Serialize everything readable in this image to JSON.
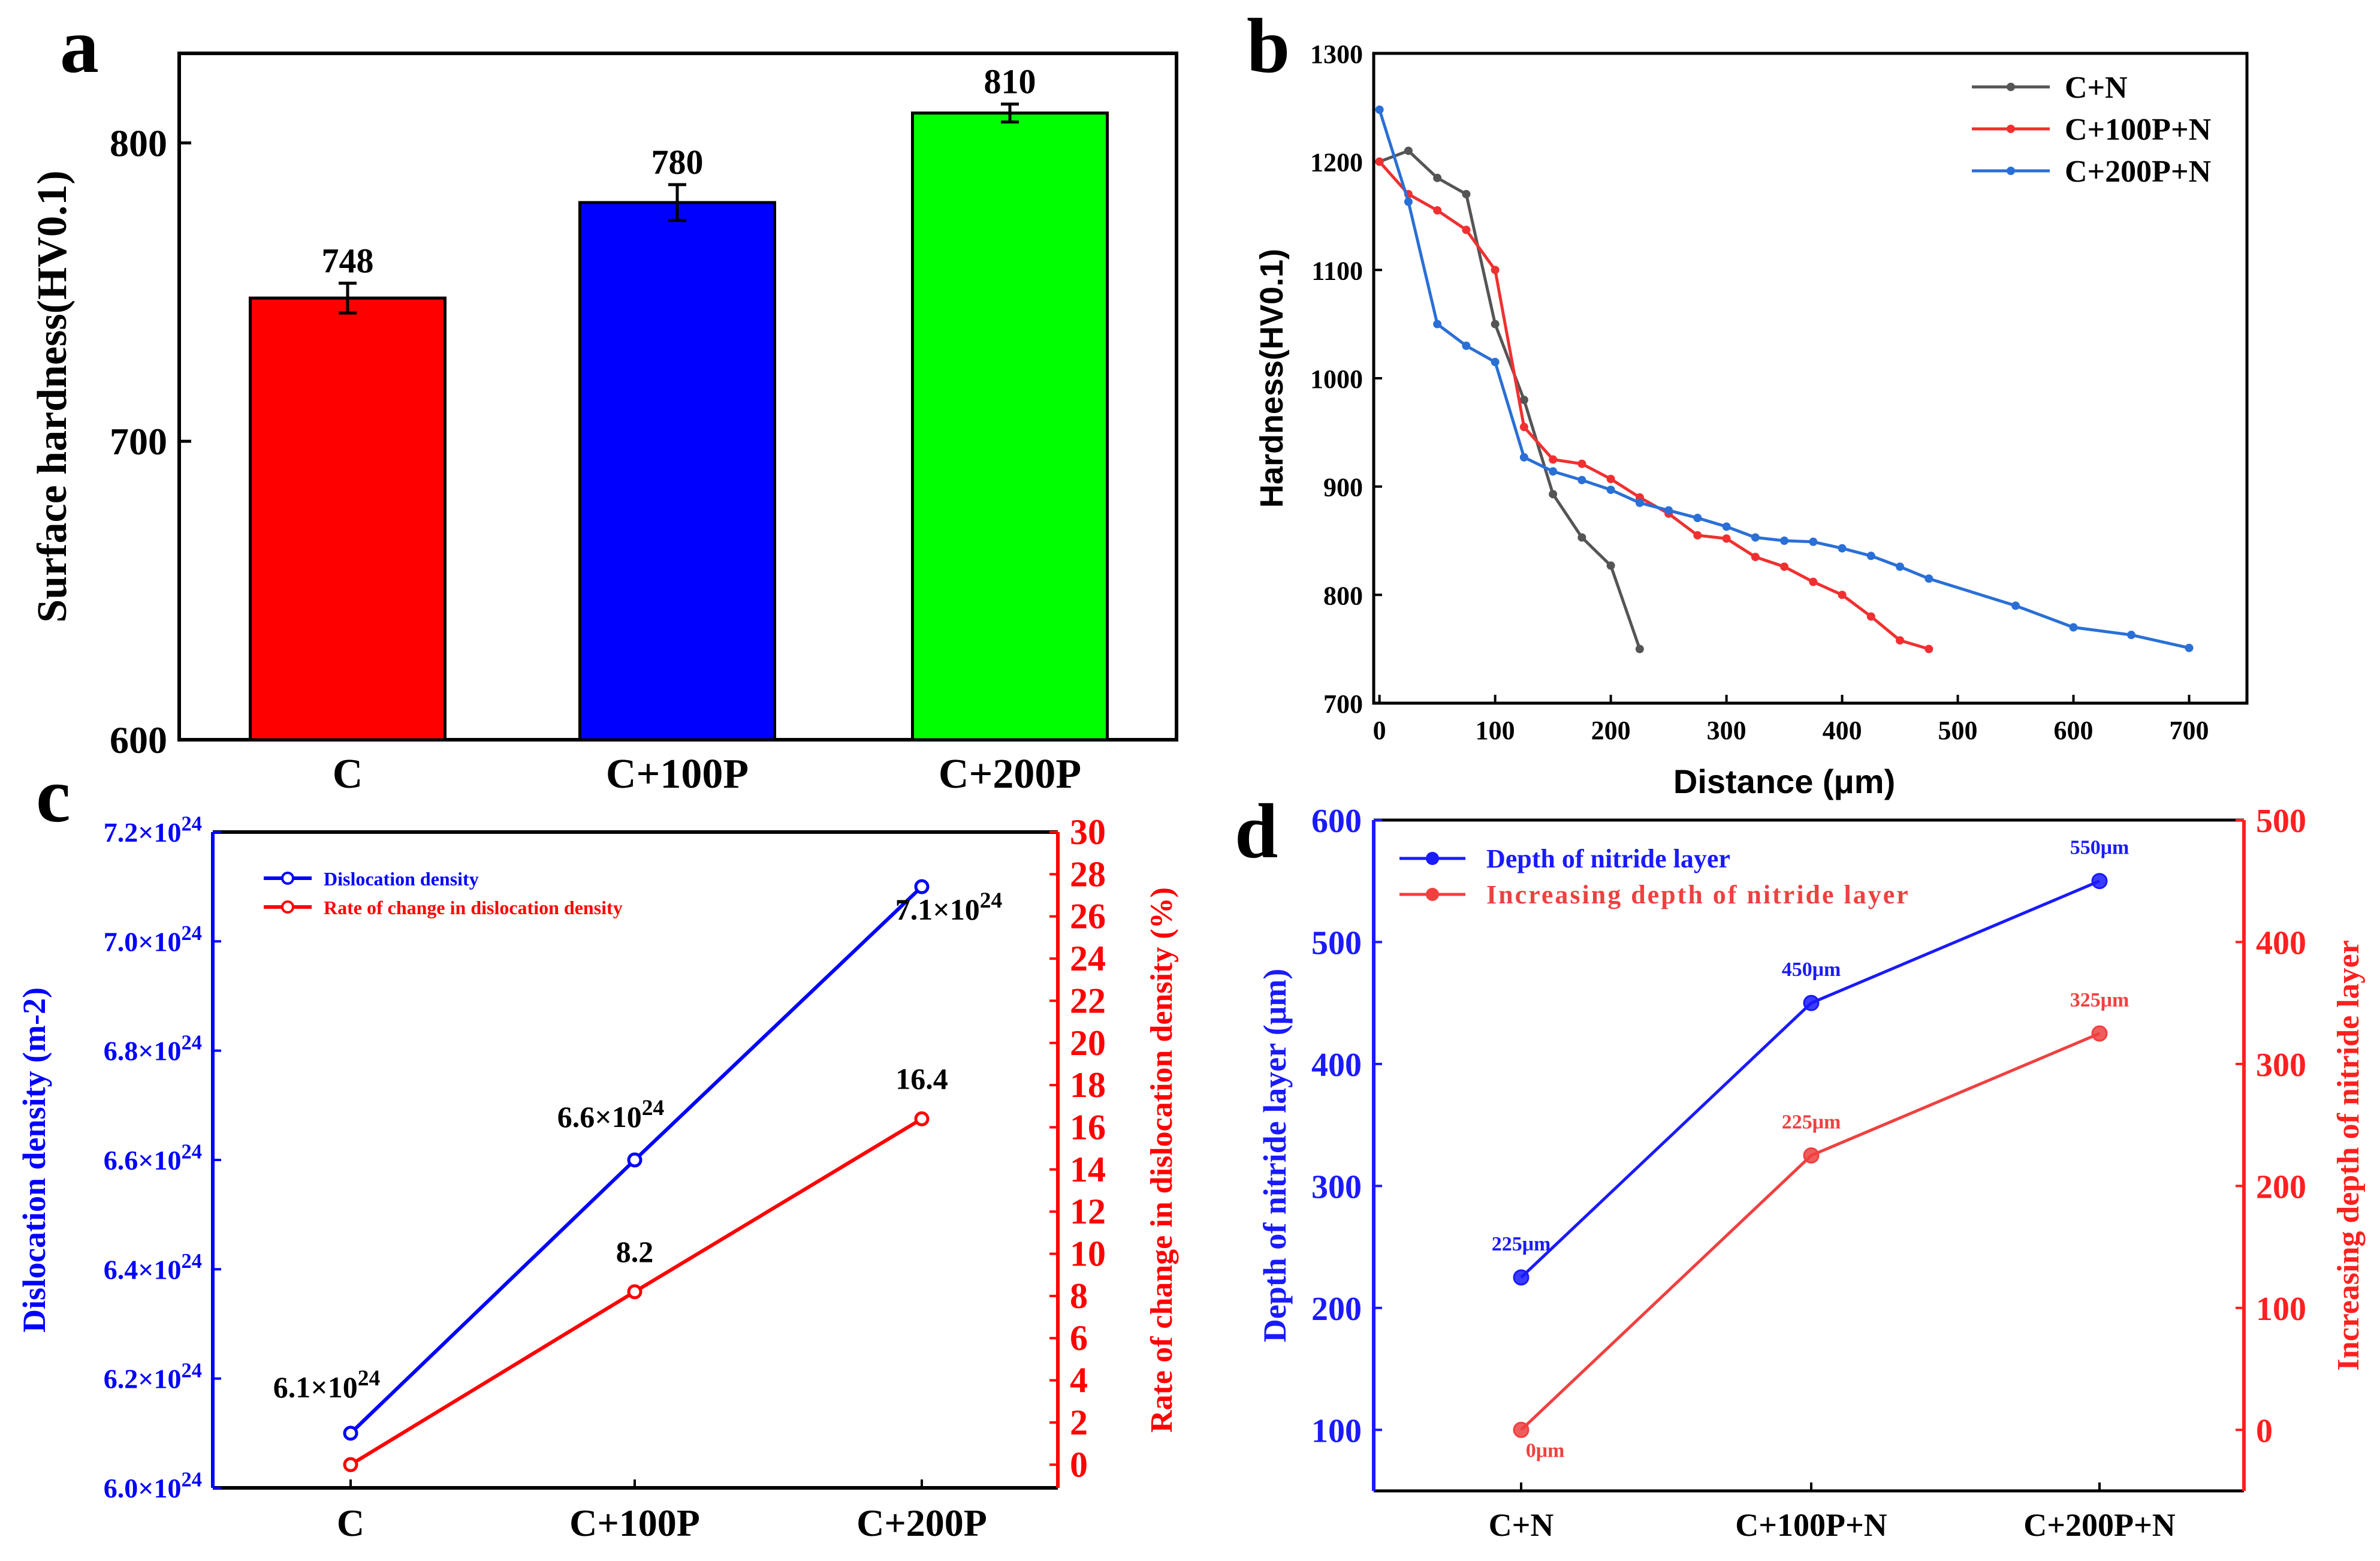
{
  "chart_data": [
    {
      "panel": "a",
      "type": "bar",
      "categories": [
        "C",
        "C+100P",
        "C+200P"
      ],
      "values": [
        748,
        780,
        810
      ],
      "errors": [
        5,
        6,
        3
      ],
      "labels": [
        "748",
        "780",
        "810"
      ],
      "colors": [
        "#ff0000",
        "#0000ff",
        "#00ff00"
      ],
      "ylabel": "Surface hardness(HV0.1)",
      "ylim": [
        600,
        830
      ],
      "yticks": [
        600,
        700,
        800
      ],
      "grid": false
    },
    {
      "panel": "b",
      "type": "line",
      "xlabel": "Distance (μm)",
      "ylabel": "Hardness(HV0.1)",
      "xlim": [
        -5,
        750
      ],
      "ylim": [
        700,
        1300
      ],
      "xticks": [
        0,
        100,
        200,
        300,
        400,
        500,
        600,
        700
      ],
      "yticks": [
        700,
        800,
        900,
        1000,
        1100,
        1200,
        1300
      ],
      "legend": "top-right",
      "series": [
        {
          "name": "C+N",
          "color": "#555555",
          "x": [
            0,
            25,
            50,
            75,
            100,
            125,
            150,
            175,
            200,
            225
          ],
          "y": [
            1200,
            1210,
            1185,
            1170,
            1050,
            980,
            893,
            853,
            827,
            750
          ]
        },
        {
          "name": "C+100P+N",
          "color": "#f03030",
          "x": [
            0,
            25,
            50,
            75,
            100,
            125,
            150,
            175,
            200,
            225,
            250,
            275,
            300,
            325,
            350,
            375,
            400,
            425,
            450,
            475
          ],
          "y": [
            1200,
            1170,
            1155,
            1137,
            1100,
            955,
            925,
            921,
            907,
            890,
            875,
            855,
            852,
            835,
            826,
            812,
            800,
            780,
            758,
            750
          ]
        },
        {
          "name": "C+200P+N",
          "color": "#2a6fd6",
          "x": [
            0,
            25,
            50,
            75,
            100,
            125,
            150,
            175,
            200,
            225,
            250,
            275,
            300,
            325,
            350,
            375,
            400,
            425,
            450,
            475,
            550,
            600,
            650,
            700
          ],
          "y": [
            1248,
            1163,
            1050,
            1030,
            1015,
            927,
            914,
            906,
            897,
            885,
            878,
            871,
            863,
            853,
            850,
            849,
            843,
            836,
            826,
            815,
            790,
            770,
            763,
            751
          ]
        }
      ]
    },
    {
      "panel": "c",
      "type": "line",
      "categories": [
        "C",
        "C+100P",
        "C+200P"
      ],
      "ylabel": "Dislocation density (m-2)",
      "y2label": "Rate of change in dislocation density (%)",
      "ylim": [
        6.0,
        7.2
      ],
      "y2lim": [
        -1.1,
        30
      ],
      "yticks": [
        "6.0",
        "6.2",
        "6.4",
        "6.6",
        "6.8",
        "7.0",
        "7.2"
      ],
      "ytick_suffix": "×10",
      "ytick_exp": "24",
      "y2ticks": [
        0,
        2,
        4,
        6,
        8,
        10,
        12,
        14,
        16,
        18,
        20,
        22,
        24,
        26,
        28,
        30
      ],
      "legend": "top-left",
      "series": [
        {
          "name": "Dislocation density",
          "axis": "left",
          "color": "#0000ff",
          "values": [
            6.1,
            6.6,
            7.1
          ],
          "labels": [
            "6.1×10",
            "6.6×10",
            "7.1×10"
          ]
        },
        {
          "name": "Rate of change in dislocation density",
          "axis": "right",
          "color": "#ff0000",
          "values": [
            0,
            8.2,
            16.4
          ],
          "labels": [
            "",
            "8.2",
            "16.4"
          ]
        }
      ]
    },
    {
      "panel": "d",
      "type": "line",
      "categories": [
        "C+N",
        "C+100P+N",
        "C+200P+N"
      ],
      "ylabel": "Depth of nitride layer (μm)",
      "y2label": "Increasing depth of nitride layer",
      "ylim": [
        50,
        600
      ],
      "y2lim": [
        -50,
        500
      ],
      "yticks": [
        100,
        200,
        300,
        400,
        500,
        600
      ],
      "y2ticks": [
        0,
        100,
        200,
        300,
        400,
        500
      ],
      "legend": "top-left",
      "series": [
        {
          "name": "Depth of nitride layer",
          "axis": "left",
          "color": "#1a1aff",
          "values": [
            225,
            450,
            550
          ],
          "labels": [
            "225μm",
            "450μm",
            "550μm"
          ]
        },
        {
          "name": "Increasing depth of nitride layer",
          "axis": "right",
          "color": "#f04040",
          "values": [
            0,
            225,
            325
          ],
          "labels": [
            "0μm",
            "225μm",
            "325μm"
          ]
        }
      ]
    }
  ],
  "panel_letters": [
    "a",
    "b",
    "c",
    "d"
  ]
}
